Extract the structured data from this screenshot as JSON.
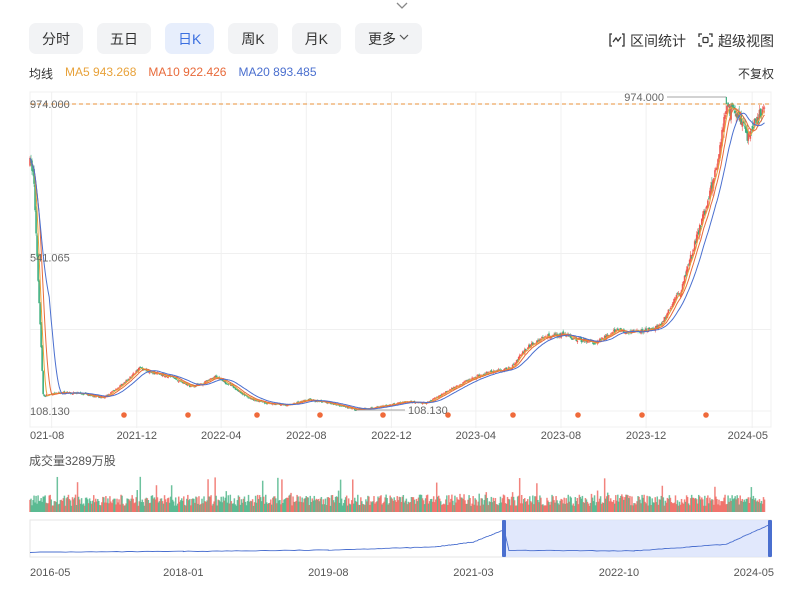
{
  "tabs": [
    {
      "label": "分时",
      "active": false
    },
    {
      "label": "五日",
      "active": false
    },
    {
      "label": "日K",
      "active": true
    },
    {
      "label": "周K",
      "active": false
    },
    {
      "label": "月K",
      "active": false
    },
    {
      "label": "更多",
      "active": false
    }
  ],
  "tools": {
    "range_stats": "区间统计",
    "super_view": "超级视图"
  },
  "ma": {
    "label": "均线",
    "ma5": "MA5 943.268",
    "ma10": "MA10 922.426",
    "ma20": "MA20 893.485"
  },
  "adjust": "不复权",
  "volume_title": "成交量3289万股",
  "colors": {
    "up": "#ee5a52",
    "down": "#3cae7e",
    "ma5": "#e8a23a",
    "ma10": "#e86a3a",
    "ma20": "#4a6fcf",
    "accent": "#3a6fe0"
  },
  "chart_data": {
    "type": "candlestick",
    "y_ticks": [
      "974.000",
      "541.065",
      "108.130"
    ],
    "ylim": [
      108.13,
      974.0
    ],
    "max_label": "974.000",
    "min_label": "108.130",
    "x_ticks": [
      "021-08",
      "2021-12",
      "2022-04",
      "2022-08",
      "2022-12",
      "2023-04",
      "2023-08",
      "2023-12",
      "2024-05"
    ],
    "x_start": "2021-07",
    "x_end": "2024-05",
    "price_path": [
      [
        "2021-07-01",
        810
      ],
      [
        "2021-07-06",
        780
      ],
      [
        "2021-07-20",
        150
      ],
      [
        "2021-08-15",
        160
      ],
      [
        "2021-09-15",
        158
      ],
      [
        "2021-10-15",
        145
      ],
      [
        "2021-11-15",
        190
      ],
      [
        "2021-12-05",
        230
      ],
      [
        "2021-12-25",
        215
      ],
      [
        "2022-01-20",
        205
      ],
      [
        "2022-02-15",
        178
      ],
      [
        "2022-03-05",
        185
      ],
      [
        "2022-03-25",
        205
      ],
      [
        "2022-04-15",
        180
      ],
      [
        "2022-05-10",
        145
      ],
      [
        "2022-06-05",
        130
      ],
      [
        "2022-07-05",
        125
      ],
      [
        "2022-08-05",
        140
      ],
      [
        "2022-09-05",
        130
      ],
      [
        "2022-10-10",
        112
      ],
      [
        "2022-11-15",
        120
      ],
      [
        "2022-12-20",
        135
      ],
      [
        "2023-01-20",
        130
      ],
      [
        "2023-02-20",
        165
      ],
      [
        "2023-03-20",
        195
      ],
      [
        "2023-04-20",
        218
      ],
      [
        "2023-05-20",
        228
      ],
      [
        "2023-06-15",
        290
      ],
      [
        "2023-07-10",
        320
      ],
      [
        "2023-08-05",
        325
      ],
      [
        "2023-08-20",
        312
      ],
      [
        "2023-09-20",
        300
      ],
      [
        "2023-10-20",
        335
      ],
      [
        "2023-11-20",
        330
      ],
      [
        "2023-12-20",
        345
      ],
      [
        "2024-01-20",
        450
      ],
      [
        "2024-02-20",
        650
      ],
      [
        "2024-03-10",
        790
      ],
      [
        "2024-03-25",
        960
      ],
      [
        "2024-04-10",
        950
      ],
      [
        "2024-04-25",
        880
      ],
      [
        "2024-05-05",
        920
      ],
      [
        "2024-05-20",
        970
      ]
    ],
    "navigator": {
      "x_ticks": [
        "2016-05",
        "2018-01",
        "2019-08",
        "2021-03",
        "2022-10",
        "2024-05"
      ]
    }
  }
}
